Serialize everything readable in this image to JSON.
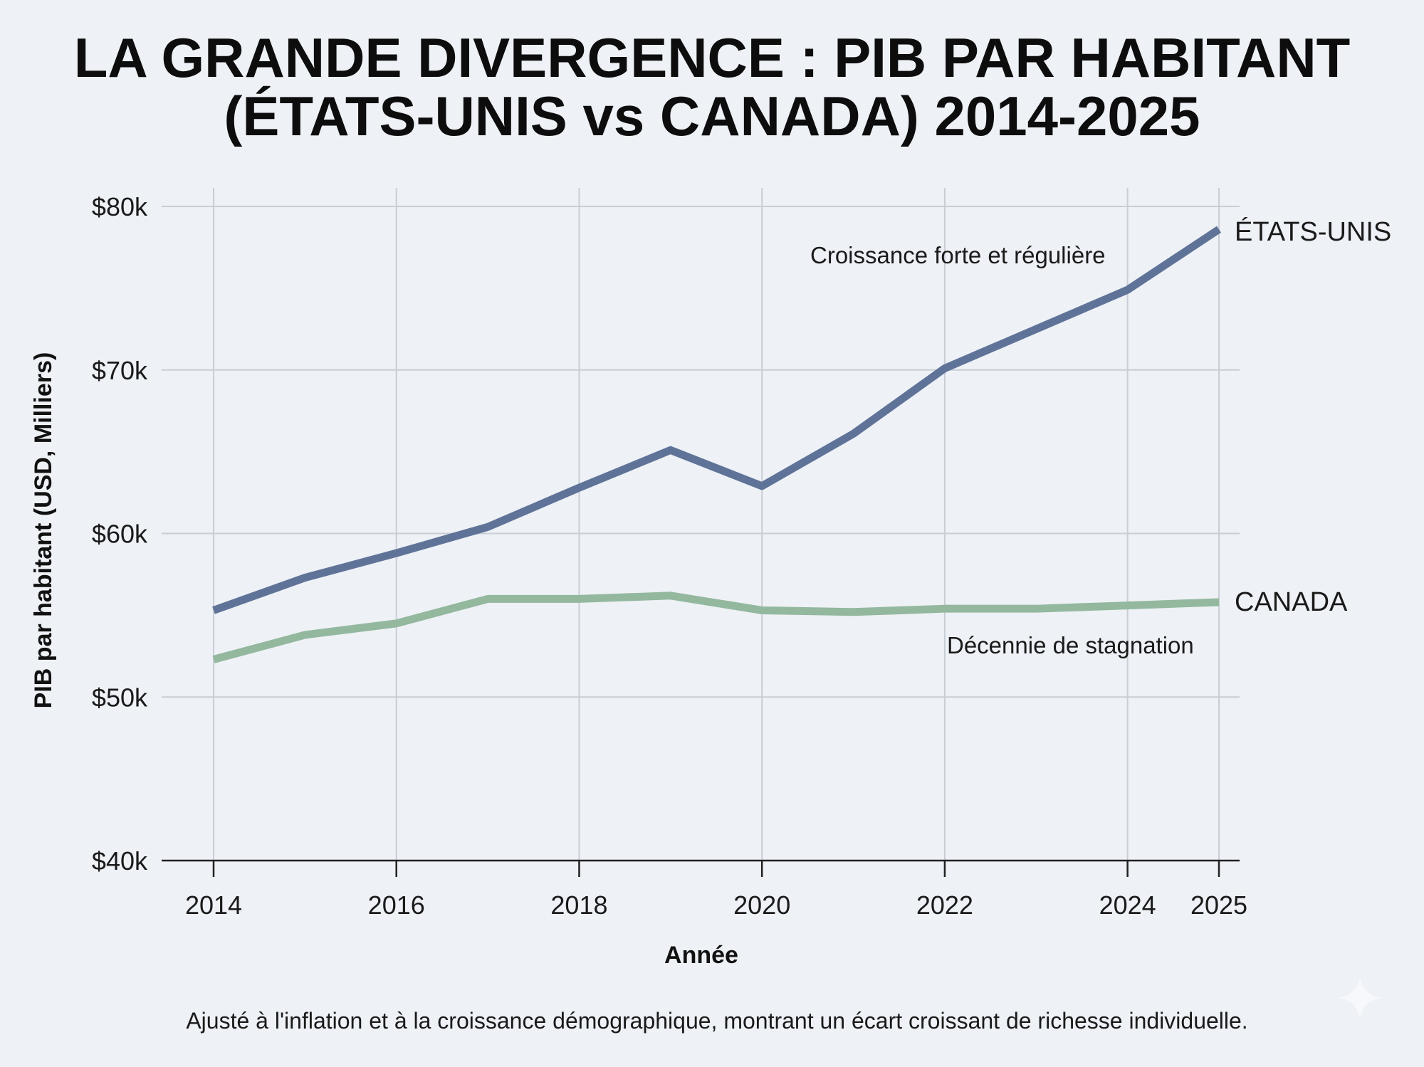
{
  "chart_data": {
    "type": "line",
    "title": [
      "LA GRANDE DIVERGENCE : PIB PAR HABITANT",
      "(ÉTATS-UNIS vs CANADA) 2014-2025"
    ],
    "xlabel": "Année",
    "ylabel": "PIB par habitant (USD, Milliers)",
    "x": [
      2014,
      2015,
      2016,
      2017,
      2018,
      2019,
      2020,
      2021,
      2022,
      2023,
      2024,
      2025
    ],
    "x_ticks": [
      "2014",
      "2016",
      "2018",
      "2020",
      "2022",
      "2024",
      "2025"
    ],
    "x_tick_values": [
      2014,
      2016,
      2018,
      2020,
      2022,
      2024,
      2025
    ],
    "y_ticks": [
      "$40k",
      "$50k",
      "$60k",
      "$70k",
      "$80k"
    ],
    "y_tick_values": [
      40,
      50,
      60,
      70,
      80
    ],
    "ylim": [
      40,
      80
    ],
    "xlim": [
      2014,
      2025
    ],
    "grid": true,
    "series": [
      {
        "name": "ÉTATS-UNIS",
        "color": "#5f7398",
        "values": [
          55.3,
          57.3,
          58.8,
          60.4,
          62.8,
          65.1,
          62.9,
          66.1,
          70.1,
          72.5,
          74.9,
          78.6
        ]
      },
      {
        "name": "CANADA",
        "color": "#93b89e",
        "values": [
          52.3,
          53.8,
          54.5,
          56.0,
          56.0,
          56.2,
          55.3,
          55.2,
          55.4,
          55.4,
          55.6,
          55.8
        ]
      }
    ],
    "annotations": [
      "Croissance forte et régulière",
      "Décennie de stagnation"
    ],
    "footnote": "Ajusté à l'inflation et à la croissance démographique, montrant un écart croissant de richesse individuelle."
  }
}
